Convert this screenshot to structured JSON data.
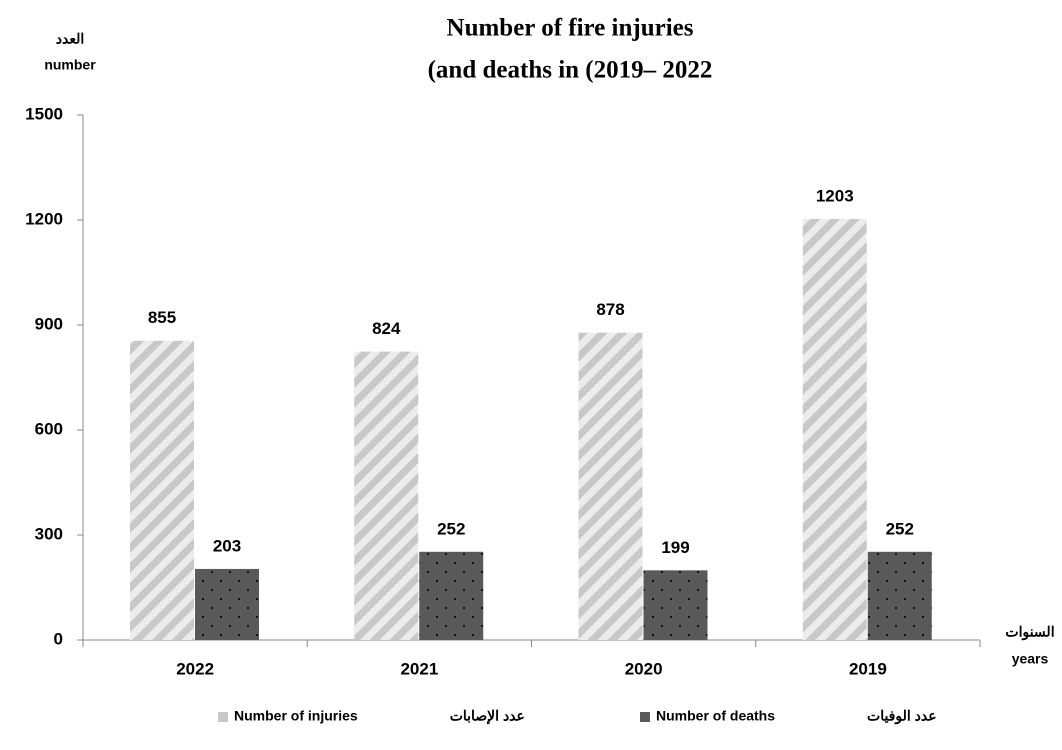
{
  "chart_data": {
    "type": "bar",
    "title": "Number of fire injuries",
    "subtitle": "(and deaths in  (2019– 2022",
    "y_label_ar": "العدد",
    "y_label": "number",
    "x_label_ar": "السنوات",
    "x_label": "years",
    "categories": [
      "2022",
      "2021",
      "2020",
      "2019"
    ],
    "series": [
      {
        "name": "Number of injuries",
        "name_ar": "عدد الإصابات",
        "color": "#c8c8c8",
        "values": [
          855,
          824,
          878,
          1203
        ]
      },
      {
        "name": "Number of deaths",
        "name_ar": "عدد الوفيات",
        "color": "#595959",
        "values": [
          203,
          252,
          199,
          252
        ]
      }
    ],
    "ylim": [
      0,
      1500
    ],
    "yticks": [
      0,
      300,
      600,
      900,
      1200,
      1500
    ],
    "grid": false,
    "legend": "bottom"
  }
}
